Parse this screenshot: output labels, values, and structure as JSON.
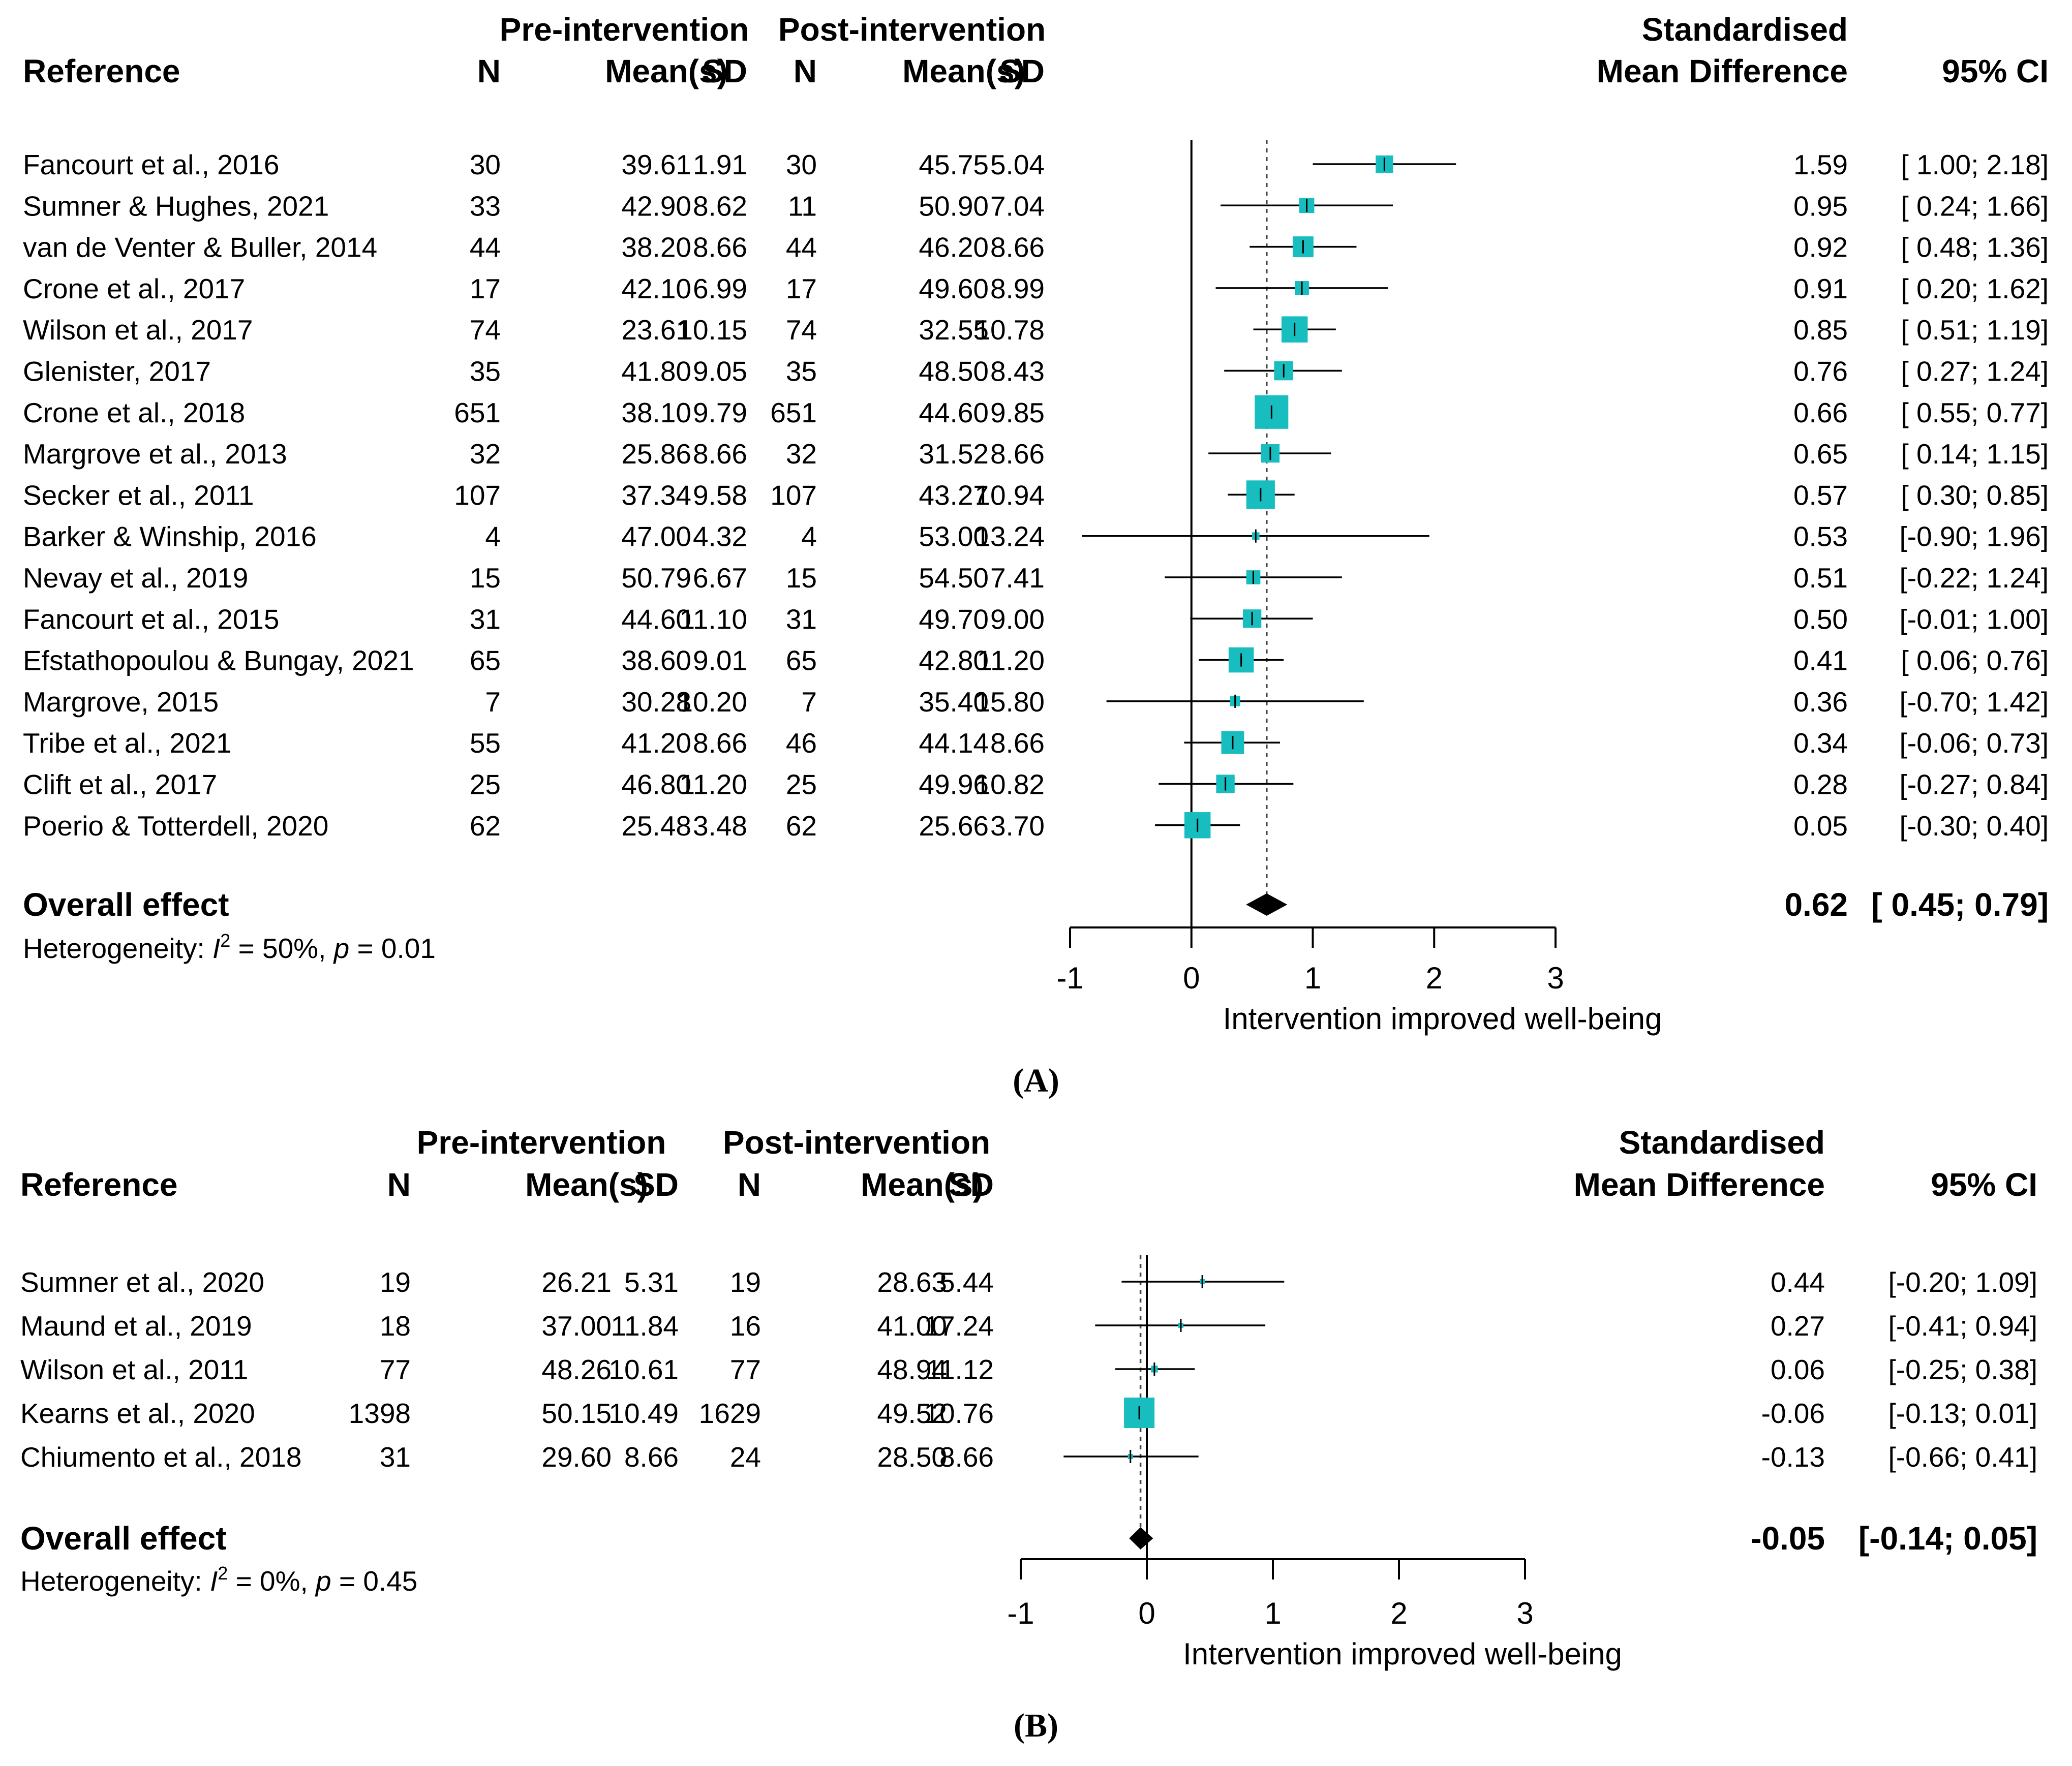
{
  "colors": {
    "box": "#17BDBF",
    "ink": "#000000",
    "ref_line": "#444444"
  },
  "headers": {
    "reference": "Reference",
    "pre": "Pre-intervention",
    "post": "Post-intervention",
    "n": "N",
    "mean": "Mean(s)",
    "sd": "SD",
    "smd1": "Standardised",
    "smd2": "Mean Difference",
    "ci": "95% CI"
  },
  "axis_title": "Intervention improved well-being",
  "chart_data": [
    {
      "panel": "A",
      "panel_label": "(A)",
      "type": "forest",
      "xlim": [
        -1,
        3
      ],
      "ticks": [
        -1,
        0,
        1,
        2,
        3
      ],
      "reference_line": 0,
      "pooled_line": 0.62,
      "studies": [
        {
          "name": "Fancourt et al., 2016",
          "n1": "30",
          "m1": "39.61",
          "sd1": "1.91",
          "n2": "30",
          "m2": "45.75",
          "sd2": "5.04",
          "smd": 1.59,
          "lo": 1.0,
          "hi": 2.18,
          "smd_text": "1.59",
          "ci_text": "[ 1.00; 2.18]",
          "w": 0.52
        },
        {
          "name": "Sumner & Hughes, 2021",
          "n1": "33",
          "m1": "42.90",
          "sd1": "8.62",
          "n2": "11",
          "m2": "50.90",
          "sd2": "7.04",
          "smd": 0.95,
          "lo": 0.24,
          "hi": 1.66,
          "smd_text": "0.95",
          "ci_text": "[ 0.24; 1.66]",
          "w": 0.45
        },
        {
          "name": "van de Venter & Buller, 2014",
          "n1": "44",
          "m1": "38.20",
          "sd1": "8.66",
          "n2": "44",
          "m2": "46.20",
          "sd2": "8.66",
          "smd": 0.92,
          "lo": 0.48,
          "hi": 1.36,
          "smd_text": "0.92",
          "ci_text": "[ 0.48; 1.36]",
          "w": 0.62
        },
        {
          "name": "Crone et al., 2017",
          "n1": "17",
          "m1": "42.10",
          "sd1": "6.99",
          "n2": "17",
          "m2": "49.60",
          "sd2": "8.99",
          "smd": 0.91,
          "lo": 0.2,
          "hi": 1.62,
          "smd_text": "0.91",
          "ci_text": "[ 0.20; 1.62]",
          "w": 0.42
        },
        {
          "name": "Wilson et al., 2017",
          "n1": "74",
          "m1": "23.61",
          "sd1": "10.15",
          "n2": "74",
          "m2": "32.55",
          "sd2": "10.78",
          "smd": 0.85,
          "lo": 0.51,
          "hi": 1.19,
          "smd_text": "0.85",
          "ci_text": "[ 0.51; 1.19]",
          "w": 0.78
        },
        {
          "name": "Glenister, 2017",
          "n1": "35",
          "m1": "41.80",
          "sd1": "9.05",
          "n2": "35",
          "m2": "48.50",
          "sd2": "8.43",
          "smd": 0.76,
          "lo": 0.27,
          "hi": 1.24,
          "smd_text": "0.76",
          "ci_text": "[ 0.27; 1.24]",
          "w": 0.57
        },
        {
          "name": "Crone et al., 2018",
          "n1": "651",
          "m1": "38.10",
          "sd1": "9.79",
          "n2": "651",
          "m2": "44.60",
          "sd2": "9.85",
          "smd": 0.66,
          "lo": 0.55,
          "hi": 0.77,
          "smd_text": "0.66",
          "ci_text": "[ 0.55; 0.77]",
          "w": 1.0
        },
        {
          "name": "Margrove et al., 2013",
          "n1": "32",
          "m1": "25.86",
          "sd1": "8.66",
          "n2": "32",
          "m2": "31.52",
          "sd2": "8.66",
          "smd": 0.65,
          "lo": 0.14,
          "hi": 1.15,
          "smd_text": "0.65",
          "ci_text": "[ 0.14; 1.15]",
          "w": 0.55
        },
        {
          "name": "Secker et al., 2011",
          "n1": "107",
          "m1": "37.34",
          "sd1": "9.58",
          "n2": "107",
          "m2": "43.27",
          "sd2": "10.94",
          "smd": 0.57,
          "lo": 0.3,
          "hi": 0.85,
          "smd_text": "0.57",
          "ci_text": "[ 0.30; 0.85]",
          "w": 0.85
        },
        {
          "name": "Barker & Winship, 2016",
          "n1": "4",
          "m1": "47.00",
          "sd1": "4.32",
          "n2": "4",
          "m2": "53.00",
          "sd2": "13.24",
          "smd": 0.53,
          "lo": -0.9,
          "hi": 1.96,
          "smd_text": "0.53",
          "ci_text": "[-0.90; 1.96]",
          "w": 0.22
        },
        {
          "name": "Nevay et al., 2019",
          "n1": "15",
          "m1": "50.79",
          "sd1": "6.67",
          "n2": "15",
          "m2": "54.50",
          "sd2": "7.41",
          "smd": 0.51,
          "lo": -0.22,
          "hi": 1.24,
          "smd_text": "0.51",
          "ci_text": "[-0.22; 1.24]",
          "w": 0.42
        },
        {
          "name": "Fancourt et al., 2015",
          "n1": "31",
          "m1": "44.60",
          "sd1": "11.10",
          "n2": "31",
          "m2": "49.70",
          "sd2": "9.00",
          "smd": 0.5,
          "lo": -0.01,
          "hi": 1.0,
          "smd_text": "0.50",
          "ci_text": "[-0.01; 1.00]",
          "w": 0.55
        },
        {
          "name": "Efstathopoulou & Bungay, 2021",
          "n1": "65",
          "m1": "38.60",
          "sd1": "9.01",
          "n2": "65",
          "m2": "42.80",
          "sd2": "11.20",
          "smd": 0.41,
          "lo": 0.06,
          "hi": 0.76,
          "smd_text": "0.41",
          "ci_text": "[ 0.06; 0.76]",
          "w": 0.75
        },
        {
          "name": "Margrove, 2015",
          "n1": "7",
          "m1": "30.28",
          "sd1": "10.20",
          "n2": "7",
          "m2": "35.40",
          "sd2": "15.80",
          "smd": 0.36,
          "lo": -0.7,
          "hi": 1.42,
          "smd_text": "0.36",
          "ci_text": "[-0.70; 1.42]",
          "w": 0.3
        },
        {
          "name": "Tribe et al., 2021",
          "n1": "55",
          "m1": "41.20",
          "sd1": "8.66",
          "n2": "46",
          "m2": "44.14",
          "sd2": "8.66",
          "smd": 0.34,
          "lo": -0.06,
          "hi": 0.73,
          "smd_text": "0.34",
          "ci_text": "[-0.06; 0.73]",
          "w": 0.68
        },
        {
          "name": "Clift et al., 2017",
          "n1": "25",
          "m1": "46.80",
          "sd1": "11.20",
          "n2": "25",
          "m2": "49.96",
          "sd2": "10.82",
          "smd": 0.28,
          "lo": -0.27,
          "hi": 0.84,
          "smd_text": "0.28",
          "ci_text": "[-0.27; 0.84]",
          "w": 0.55
        },
        {
          "name": "Poerio & Totterdell, 2020",
          "n1": "62",
          "m1": "25.48",
          "sd1": "3.48",
          "n2": "62",
          "m2": "25.66",
          "sd2": "3.70",
          "smd": 0.05,
          "lo": -0.3,
          "hi": 0.4,
          "smd_text": "0.05",
          "ci_text": "[-0.30; 0.40]",
          "w": 0.78
        }
      ],
      "overall": {
        "label": "Overall effect",
        "smd": 0.62,
        "lo": 0.45,
        "hi": 0.79,
        "smd_text": "0.62",
        "ci_text": "[ 0.45; 0.79]"
      },
      "heterogeneity": {
        "prefix": "Heterogeneity: ",
        "i": "I",
        "sup": "2",
        "rest": " = 50%, ",
        "p": "p",
        "pval": " = 0.01"
      }
    },
    {
      "panel": "B",
      "panel_label": "(B)",
      "type": "forest",
      "xlim": [
        -1,
        3
      ],
      "ticks": [
        -1,
        0,
        1,
        2,
        3
      ],
      "reference_line": 0,
      "pooled_line": -0.05,
      "studies": [
        {
          "name": "Sumner et al., 2020",
          "n1": "19",
          "m1": "26.21",
          "sd1": "5.31",
          "n2": "19",
          "m2": "28.63",
          "sd2": "5.44",
          "smd": 0.44,
          "lo": -0.2,
          "hi": 1.09,
          "smd_text": "0.44",
          "ci_text": "[-0.20; 1.09]",
          "w": 0.12
        },
        {
          "name": "Maund et al., 2019",
          "n1": "18",
          "m1": "37.00",
          "sd1": "11.84",
          "n2": "16",
          "m2": "41.00",
          "sd2": "17.24",
          "smd": 0.27,
          "lo": -0.41,
          "hi": 0.94,
          "smd_text": "0.27",
          "ci_text": "[-0.41; 0.94]",
          "w": 0.11
        },
        {
          "name": "Wilson et al., 2011",
          "n1": "77",
          "m1": "48.26",
          "sd1": "10.61",
          "n2": "77",
          "m2": "48.94",
          "sd2": "11.12",
          "smd": 0.06,
          "lo": -0.25,
          "hi": 0.38,
          "smd_text": "0.06",
          "ci_text": "[-0.25; 0.38]",
          "w": 0.22
        },
        {
          "name": "Kearns et al., 2020",
          "n1": "1398",
          "m1": "50.15",
          "sd1": "10.49",
          "n2": "1629",
          "m2": "49.52",
          "sd2": "10.76",
          "smd": -0.06,
          "lo": -0.13,
          "hi": 0.01,
          "smd_text": "-0.06",
          "ci_text": "[-0.13; 0.01]",
          "w": 1.0
        },
        {
          "name": "Chiumento et al., 2018",
          "n1": "31",
          "m1": "29.60",
          "sd1": "8.66",
          "n2": "24",
          "m2": "28.50",
          "sd2": "8.66",
          "smd": -0.13,
          "lo": -0.66,
          "hi": 0.41,
          "smd_text": "-0.13",
          "ci_text": "[-0.66; 0.41]",
          "w": 0.12
        }
      ],
      "overall": {
        "label": "Overall effect",
        "smd": -0.05,
        "lo": -0.14,
        "hi": 0.05,
        "smd_text": "-0.05",
        "ci_text": "[-0.14; 0.05]"
      },
      "heterogeneity": {
        "prefix": "Heterogeneity: ",
        "i": "I",
        "sup": "2",
        "rest": " = 0%, ",
        "p": "p",
        "pval": " = 0.45"
      }
    }
  ]
}
